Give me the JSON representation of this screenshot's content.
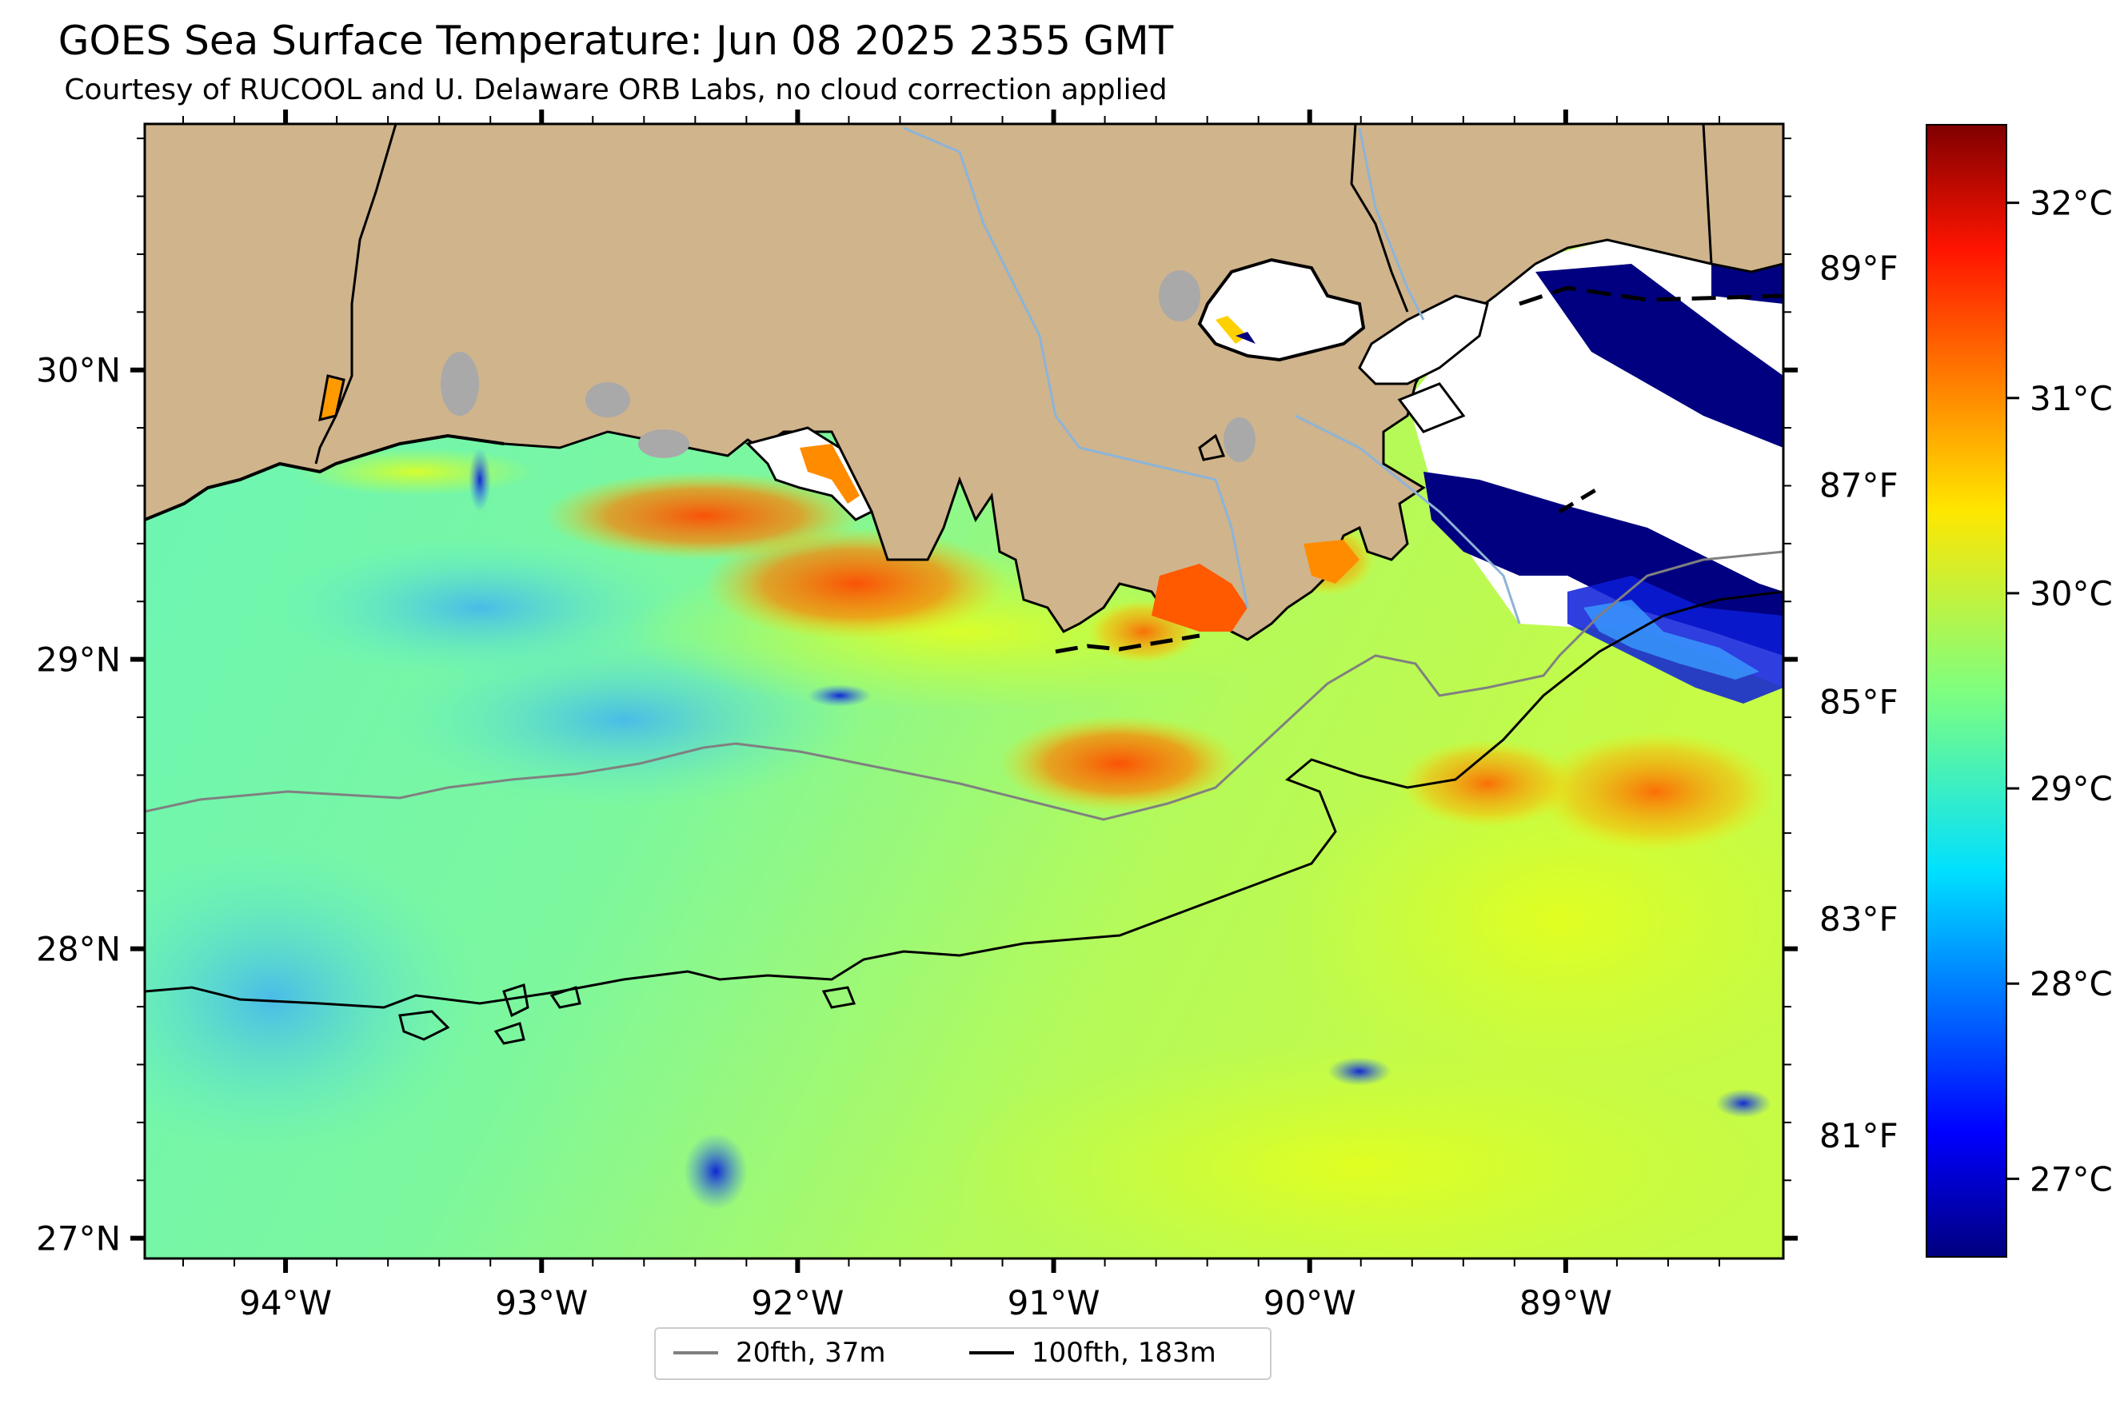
{
  "title": "GOES Sea Surface Temperature: Jun 08 2025 2355 GMT",
  "subtitle": "Courtesy of RUCOOL and U. Delaware ORB Labs, no cloud correction applied",
  "map": {
    "projection": "lat-lon",
    "lon_range": [
      -94.55,
      -88.15
    ],
    "lat_range": [
      26.93,
      30.85
    ],
    "land_color": "#d0b48c",
    "no_data_color": "#ffffff",
    "bathymetry_color_20fth": "#808080",
    "bathymetry_color_100fth": "#000000",
    "x_ticks": [
      {
        "lon": -94,
        "label": "94°W"
      },
      {
        "lon": -93,
        "label": "93°W"
      },
      {
        "lon": -92,
        "label": "92°W"
      },
      {
        "lon": -91,
        "label": "91°W"
      },
      {
        "lon": -90,
        "label": "90°W"
      },
      {
        "lon": -89,
        "label": "89°W"
      }
    ],
    "y_ticks": [
      {
        "lat": 30,
        "label": "30°N"
      },
      {
        "lat": 29,
        "label": "29°N"
      },
      {
        "lat": 28,
        "label": "28°N"
      },
      {
        "lat": 27,
        "label": "27°N"
      }
    ],
    "fahrenheit_ticks": [
      {
        "f": 89,
        "label": "89°F"
      },
      {
        "f": 87,
        "label": "87°F"
      },
      {
        "f": 85,
        "label": "85°F"
      },
      {
        "f": 83,
        "label": "83°F"
      },
      {
        "f": 81,
        "label": "81°F"
      }
    ]
  },
  "colorbar": {
    "colormap": "jet",
    "min_c": 26.6,
    "max_c": 32.4,
    "ticks": [
      {
        "c": 32,
        "label": "32°C"
      },
      {
        "c": 31,
        "label": "31°C"
      },
      {
        "c": 30,
        "label": "30°C"
      },
      {
        "c": 29,
        "label": "29°C"
      },
      {
        "c": 28,
        "label": "28°C"
      },
      {
        "c": 27,
        "label": "27°C"
      }
    ]
  },
  "legend": {
    "items": [
      {
        "label": "20fth, 37m",
        "color": "#808080"
      },
      {
        "label": "100fth, 183m",
        "color": "#000000"
      }
    ]
  }
}
